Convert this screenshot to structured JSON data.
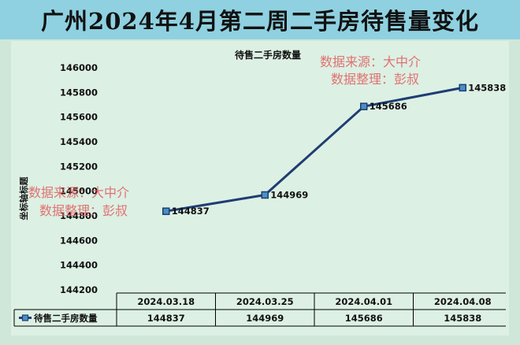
{
  "page": {
    "title": "广州2024年4月第二周二手房待售量变化"
  },
  "watermarks": [
    {
      "line1": "数据来源：大中介",
      "line2": "数据整理：彭叔"
    },
    {
      "line1": "数据来源：大中介",
      "line2": "数据整理：彭叔"
    }
  ],
  "chart_data": {
    "type": "line",
    "title": "待售二手房数量",
    "ylabel": "坐标轴标题",
    "xlabel": "",
    "categories": [
      "2024.03.18",
      "2024.03.25",
      "2024.04.01",
      "2024.04.08"
    ],
    "series": [
      {
        "name": "待售二手房数量",
        "values": [
          144837,
          144969,
          145686,
          145838
        ]
      }
    ],
    "ylim": [
      144200,
      146000
    ],
    "yticks": [
      "146000",
      "145800",
      "145600",
      "145400",
      "145200",
      "145000",
      "144800",
      "144600",
      "144400",
      "144200"
    ],
    "data_labels": [
      "144837",
      "144969",
      "145686",
      "145838"
    ],
    "data_table": true,
    "legend": "data-table-left",
    "grid": false,
    "colors": {
      "series": "#1f3d73",
      "marker": "#4a90c2",
      "grid": "#000000"
    }
  }
}
